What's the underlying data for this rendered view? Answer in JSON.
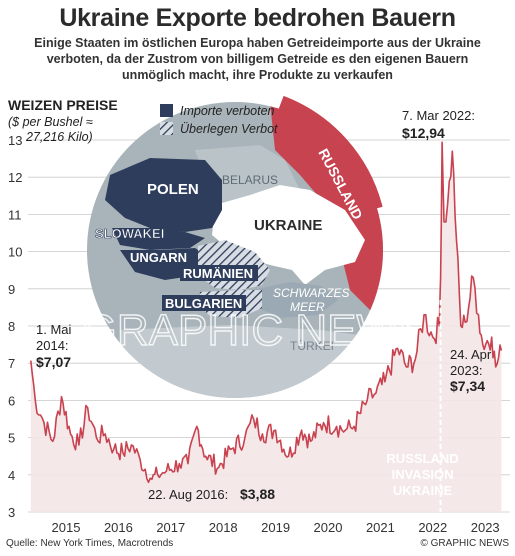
{
  "title": "Ukraine Exporte bedrohen Bauern",
  "subtitle_lines": [
    "Einige Staaten im östlichen Europa haben Getreideimporte aus der Ukraine",
    "verboten, da der Zustrom von billigem Getreide es den eigenen Bauern",
    "unmöglich macht, ihre Produkte zu verkaufen"
  ],
  "source": "Quelle: New York Times, Macrotrends",
  "credit": "© GRAPHIC NEWS",
  "watermark": "GRAPHIC NEWS",
  "colors": {
    "line": "#c8424f",
    "fill": "#f4e6e6",
    "banned": "#2e3d5c",
    "russia": "#c84350",
    "ukraine": "#ffffff",
    "map_bg": "#a9b4ba"
  },
  "legend": {
    "banned": "Importe verboten",
    "considering": "Überlegen Verbot"
  },
  "map_labels": {
    "poland": "POLEN",
    "belarus": "BELARUS",
    "ukraine": "UKRAINE",
    "russia": "RUSSLAND",
    "slovakia": "SLOWAKEI",
    "hungary": "UNGARN",
    "romania": "RUMÄNIEN",
    "bulgaria": "BULGARIEN",
    "black_sea_1": "SCHWARZES",
    "black_sea_2": "MEER",
    "turkey": "TÜRKEI"
  },
  "annotations": {
    "start_l1": "1. Mai",
    "start_l2": "2014:",
    "start_value": "$7,07",
    "low_label": "22. Aug 2016:",
    "low_value": "$3,88",
    "peak_label": "7. Mar 2022:",
    "peak_value": "$12,94",
    "end_l1": "24. Apr",
    "end_l2": "2023:",
    "end_value": "$7,34",
    "invasion": [
      "RUSSLAND",
      "INVASION",
      "UKRAINE"
    ]
  },
  "chart_data": {
    "type": "line",
    "ylabel": "WEIZEN PREISE",
    "ylabel_sub_1": "($ per Bushel ≈",
    "ylabel_sub_2": "27,216 Kilo)",
    "ylim": [
      3,
      13
    ],
    "yticks": [
      3,
      4,
      5,
      6,
      7,
      8,
      9,
      10,
      11,
      12,
      13
    ],
    "xticks": [
      "2015",
      "2016",
      "2017",
      "2018",
      "2019",
      "2020",
      "2021",
      "2022",
      "2023"
    ],
    "x_range": [
      "2014-05-01",
      "2023-04-24"
    ],
    "series": [
      {
        "values": [
          [
            "2014-05-01",
            7.07
          ],
          [
            "2014-06-01",
            6.0
          ],
          [
            "2014-08-01",
            5.4
          ],
          [
            "2014-10-01",
            4.9
          ],
          [
            "2014-12-01",
            6.1
          ],
          [
            "2015-02-01",
            5.1
          ],
          [
            "2015-04-01",
            4.8
          ],
          [
            "2015-06-01",
            5.8
          ],
          [
            "2015-08-01",
            5.0
          ],
          [
            "2015-10-01",
            5.1
          ],
          [
            "2015-12-01",
            4.7
          ],
          [
            "2016-02-01",
            4.6
          ],
          [
            "2016-04-01",
            4.8
          ],
          [
            "2016-06-01",
            4.4
          ],
          [
            "2016-08-22",
            3.88
          ],
          [
            "2016-10-01",
            4.0
          ],
          [
            "2016-12-01",
            4.1
          ],
          [
            "2017-03-01",
            4.3
          ],
          [
            "2017-05-01",
            4.3
          ],
          [
            "2017-07-01",
            5.3
          ],
          [
            "2017-09-01",
            4.5
          ],
          [
            "2017-12-01",
            4.2
          ],
          [
            "2018-03-01",
            4.7
          ],
          [
            "2018-06-01",
            5.0
          ],
          [
            "2018-08-01",
            5.5
          ],
          [
            "2018-10-01",
            5.1
          ],
          [
            "2019-01-01",
            5.2
          ],
          [
            "2019-04-01",
            4.5
          ],
          [
            "2019-07-01",
            5.2
          ],
          [
            "2019-09-01",
            4.9
          ],
          [
            "2019-12-01",
            5.4
          ],
          [
            "2020-03-01",
            5.3
          ],
          [
            "2020-05-01",
            5.2
          ],
          [
            "2020-07-01",
            5.3
          ],
          [
            "2020-10-01",
            6.0
          ],
          [
            "2020-12-01",
            6.2
          ],
          [
            "2021-02-01",
            6.5
          ],
          [
            "2021-05-01",
            7.4
          ],
          [
            "2021-07-01",
            6.9
          ],
          [
            "2021-09-01",
            7.1
          ],
          [
            "2021-11-01",
            8.3
          ],
          [
            "2022-01-01",
            7.7
          ],
          [
            "2022-02-15",
            8.0
          ],
          [
            "2022-02-24",
            9.3
          ],
          [
            "2022-03-07",
            12.94
          ],
          [
            "2022-03-20",
            10.8
          ],
          [
            "2022-04-15",
            11.3
          ],
          [
            "2022-05-17",
            12.7
          ],
          [
            "2022-06-15",
            10.3
          ],
          [
            "2022-07-15",
            8.0
          ],
          [
            "2022-08-15",
            8.1
          ],
          [
            "2022-10-10",
            9.3
          ],
          [
            "2022-11-15",
            8.3
          ],
          [
            "2022-12-15",
            7.5
          ],
          [
            "2023-02-15",
            7.7
          ],
          [
            "2023-03-15",
            6.9
          ],
          [
            "2023-04-24",
            7.34
          ]
        ]
      }
    ]
  }
}
